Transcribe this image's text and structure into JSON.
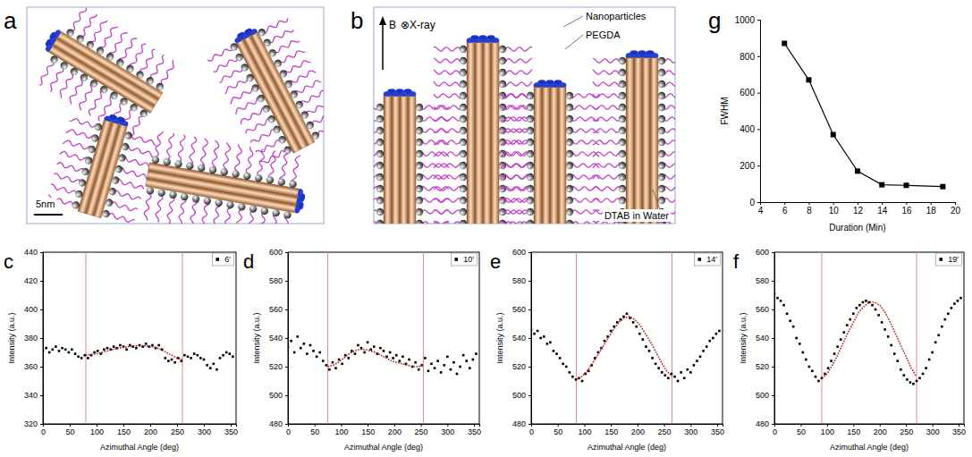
{
  "diagrams": [
    {
      "panel_label": "a",
      "scale_bar": "5nm"
    },
    {
      "panel_label": "b",
      "field": "B",
      "beam": "⊗X-ray",
      "labels": [
        "Nanoparticles",
        "PEGDA",
        "DTAB in Water"
      ]
    }
  ],
  "chart_data": [
    {
      "panel_label": "c",
      "type": "scatter",
      "x_label": "Azimuthal Angle (deg)",
      "y_label": "Intensity (a.u.)",
      "xlim": [
        0,
        360
      ],
      "xticks": [
        0,
        50,
        100,
        150,
        200,
        250,
        300,
        350
      ],
      "ylim": [
        320,
        440
      ],
      "yticks": [
        320,
        340,
        360,
        380,
        400,
        420,
        440
      ],
      "legend": "upper right",
      "reference_lines": [
        80,
        260
      ],
      "series": [
        {
          "name": "6'",
          "type": "scatter",
          "color": "#000000",
          "marker": "square",
          "x": [
            0,
            6,
            12,
            18,
            24,
            30,
            36,
            42,
            48,
            54,
            60,
            66,
            72,
            78,
            84,
            90,
            96,
            102,
            108,
            114,
            120,
            126,
            132,
            138,
            144,
            150,
            156,
            162,
            168,
            174,
            180,
            186,
            192,
            198,
            204,
            210,
            216,
            222,
            228,
            234,
            240,
            246,
            252,
            258,
            264,
            270,
            276,
            282,
            288,
            294,
            300,
            306,
            312,
            318,
            324,
            330,
            336,
            342,
            348,
            354
          ],
          "values": [
            371,
            373,
            370,
            372,
            374,
            371,
            373,
            372,
            370,
            372,
            369,
            367,
            366,
            368,
            366,
            368,
            370,
            371,
            369,
            372,
            373,
            372,
            374,
            373,
            375,
            374,
            372,
            375,
            374,
            373,
            375,
            374,
            376,
            374,
            375,
            373,
            375,
            372,
            366,
            364,
            365,
            363,
            366,
            364,
            368,
            367,
            366,
            369,
            368,
            366,
            365,
            361,
            359,
            362,
            358,
            366,
            368,
            370,
            369,
            367
          ]
        },
        {
          "type": "line",
          "color": "#b22222",
          "line_style": "dotted",
          "x": [
            80,
            90,
            100,
            110,
            120,
            130,
            140,
            150,
            160,
            170,
            180,
            190,
            200,
            210,
            220,
            230,
            240,
            250,
            260
          ],
          "values": [
            368,
            368.5,
            369,
            370,
            371,
            372,
            373,
            373.5,
            374,
            374.5,
            374.5,
            374.5,
            374,
            373.5,
            372,
            370,
            368,
            366,
            365
          ]
        }
      ]
    },
    {
      "panel_label": "d",
      "type": "scatter",
      "x_label": "Azimuthal Angle (deg)",
      "y_label": "Intensity (a.u.)",
      "xlim": [
        0,
        360
      ],
      "xticks": [
        0,
        50,
        100,
        150,
        200,
        250,
        300,
        350
      ],
      "ylim": [
        480,
        600
      ],
      "yticks": [
        480,
        500,
        520,
        540,
        560,
        580,
        600
      ],
      "legend": "upper right",
      "reference_lines": [
        75,
        255
      ],
      "series": [
        {
          "name": "10'",
          "type": "scatter",
          "color": "#000000",
          "marker": "square",
          "x": [
            0,
            6,
            12,
            18,
            24,
            30,
            36,
            42,
            48,
            54,
            60,
            66,
            72,
            78,
            84,
            90,
            96,
            102,
            108,
            114,
            120,
            126,
            132,
            138,
            144,
            150,
            156,
            162,
            168,
            174,
            180,
            186,
            192,
            198,
            204,
            210,
            216,
            222,
            228,
            234,
            240,
            246,
            252,
            258,
            264,
            270,
            276,
            282,
            288,
            294,
            300,
            306,
            312,
            318,
            324,
            330,
            336,
            342,
            348,
            354
          ],
          "values": [
            534,
            538,
            530,
            541,
            533,
            536,
            529,
            535,
            531,
            527,
            530,
            524,
            521,
            518,
            523,
            519,
            525,
            522,
            528,
            526,
            531,
            529,
            535,
            533,
            530,
            537,
            532,
            534,
            529,
            533,
            531,
            527,
            530,
            526,
            528,
            524,
            527,
            522,
            525,
            520,
            523,
            518,
            521,
            526,
            517,
            522,
            519,
            524,
            516,
            521,
            527,
            518,
            523,
            515,
            520,
            528,
            524,
            519,
            525,
            529
          ]
        },
        {
          "type": "line",
          "color": "#b22222",
          "line_style": "dotted",
          "x": [
            75,
            85,
            95,
            105,
            115,
            125,
            135,
            145,
            155,
            165,
            175,
            185,
            195,
            205,
            215,
            225,
            235,
            245,
            255
          ],
          "values": [
            520,
            521,
            523,
            526,
            529,
            531,
            532,
            532,
            531,
            530,
            528,
            526,
            524,
            523,
            522,
            521,
            520,
            520,
            521
          ]
        }
      ]
    },
    {
      "panel_label": "e",
      "type": "scatter",
      "x_label": "Azimuthal Angle (deg)",
      "y_label": "Intensity (a.u.)",
      "xlim": [
        0,
        360
      ],
      "xticks": [
        0,
        50,
        100,
        150,
        200,
        250,
        300,
        350
      ],
      "ylim": [
        480,
        600
      ],
      "yticks": [
        480,
        500,
        520,
        540,
        560,
        580,
        600
      ],
      "legend": "upper right",
      "reference_lines": [
        85,
        265
      ],
      "series": [
        {
          "name": "14'",
          "type": "scatter",
          "color": "#000000",
          "marker": "square",
          "x": [
            0,
            6,
            12,
            18,
            24,
            30,
            36,
            42,
            48,
            54,
            60,
            66,
            72,
            78,
            84,
            90,
            96,
            102,
            108,
            114,
            120,
            126,
            132,
            138,
            144,
            150,
            156,
            162,
            168,
            174,
            180,
            186,
            192,
            198,
            204,
            210,
            216,
            222,
            228,
            234,
            240,
            246,
            252,
            258,
            264,
            270,
            276,
            282,
            288,
            294,
            300,
            306,
            312,
            318,
            324,
            330,
            336,
            342,
            348,
            354
          ],
          "values": [
            546,
            543,
            545,
            540,
            541,
            536,
            537,
            531,
            529,
            526,
            522,
            520,
            516,
            513,
            511,
            512,
            510,
            515,
            517,
            521,
            526,
            530,
            533,
            538,
            541,
            545,
            548,
            551,
            553,
            555,
            557,
            554,
            551,
            548,
            543,
            539,
            534,
            531,
            526,
            522,
            519,
            516,
            514,
            512,
            515,
            513,
            510,
            516,
            512,
            518,
            516,
            521,
            524,
            527,
            531,
            534,
            538,
            540,
            543,
            545
          ]
        },
        {
          "type": "line",
          "color": "#b22222",
          "line_style": "dotted",
          "x": [
            85,
            95,
            105,
            115,
            125,
            135,
            145,
            155,
            165,
            175,
            185,
            195,
            205,
            215,
            225,
            235,
            245,
            255,
            265
          ],
          "values": [
            511,
            513,
            517,
            522,
            528,
            534,
            540,
            546,
            551,
            554,
            555,
            553,
            549,
            543,
            537,
            530,
            523,
            517,
            513
          ]
        }
      ]
    },
    {
      "panel_label": "f",
      "type": "scatter",
      "x_label": "Azimuthal Angle (deg)",
      "y_label": "Intensity (a.u.)",
      "xlim": [
        0,
        360
      ],
      "xticks": [
        0,
        50,
        100,
        150,
        200,
        250,
        300,
        350
      ],
      "ylim": [
        480,
        600
      ],
      "yticks": [
        480,
        500,
        520,
        540,
        560,
        580,
        600
      ],
      "legend": "upper right",
      "reference_lines": [
        90,
        270
      ],
      "series": [
        {
          "name": "19'",
          "type": "scatter",
          "color": "#000000",
          "marker": "square",
          "x": [
            0,
            6,
            12,
            18,
            24,
            30,
            36,
            42,
            48,
            54,
            60,
            66,
            72,
            78,
            84,
            90,
            96,
            102,
            108,
            114,
            120,
            126,
            132,
            138,
            144,
            150,
            156,
            162,
            168,
            174,
            180,
            186,
            192,
            198,
            204,
            210,
            216,
            222,
            228,
            234,
            240,
            246,
            252,
            258,
            264,
            270,
            276,
            282,
            288,
            294,
            300,
            306,
            312,
            318,
            324,
            330,
            336,
            342,
            348,
            354
          ],
          "values": [
            571,
            568,
            566,
            563,
            557,
            552,
            548,
            540,
            536,
            530,
            525,
            520,
            517,
            513,
            510,
            512,
            515,
            519,
            524,
            529,
            534,
            539,
            544,
            549,
            553,
            557,
            561,
            563,
            565,
            566,
            565,
            563,
            560,
            556,
            551,
            546,
            541,
            535,
            529,
            524,
            518,
            514,
            511,
            509,
            508,
            510,
            512,
            515,
            519,
            525,
            530,
            537,
            542,
            548,
            553,
            557,
            561,
            564,
            566,
            568
          ]
        },
        {
          "type": "line",
          "color": "#b22222",
          "line_style": "dotted",
          "x": [
            90,
            100,
            110,
            120,
            130,
            140,
            150,
            160,
            170,
            180,
            190,
            200,
            210,
            220,
            230,
            240,
            250,
            260,
            270
          ],
          "values": [
            512,
            515,
            521,
            528,
            536,
            544,
            551,
            558,
            562,
            565,
            565,
            563,
            558,
            551,
            543,
            535,
            527,
            519,
            513
          ]
        }
      ]
    },
    {
      "panel_label": "g",
      "type": "line",
      "x_label": "Duration (Min)",
      "y_label": "FWHM",
      "xlim": [
        4,
        20
      ],
      "xticks": [
        4,
        6,
        8,
        10,
        12,
        14,
        16,
        18,
        20
      ],
      "ylim": [
        0,
        1000
      ],
      "yticks": [
        0,
        200,
        400,
        600,
        800,
        1000
      ],
      "x": [
        6,
        8,
        10,
        12,
        14,
        16,
        19
      ],
      "series": [
        {
          "type": "line",
          "color": "#000000",
          "marker": "square",
          "line_style": "solid",
          "values": [
            870,
            670,
            370,
            170,
            95,
            92,
            85
          ]
        }
      ]
    }
  ]
}
